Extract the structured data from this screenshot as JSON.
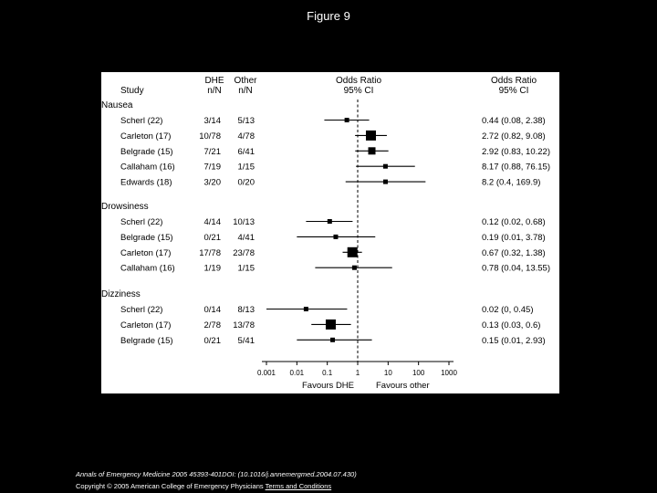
{
  "slide": {
    "title": "Figure 9"
  },
  "chart_data": {
    "type": "forest",
    "headers": {
      "study": "Study",
      "dhe_line1": "DHE",
      "dhe_line2": "n/N",
      "other_line1": "Other",
      "other_line2": "n/N",
      "plot_line1": "Odds Ratio",
      "plot_line2": "95% CI",
      "ci_line1": "Odds Ratio",
      "ci_line2": "95% CI"
    },
    "x_axis": {
      "scale": "log",
      "range": [
        0.001,
        1000
      ],
      "ticks": [
        0.001,
        0.01,
        0.1,
        1,
        10,
        100,
        1000
      ],
      "tick_labels": [
        "0.001",
        "0.01",
        "0.1",
        "1",
        "10",
        "100",
        "1000"
      ],
      "reference_line": 1,
      "label_left": "Favours DHE",
      "label_right": "Favours other"
    },
    "groups": [
      {
        "name": "Nausea",
        "studies": [
          {
            "study": "Scherl (22)",
            "dhe": "3/14",
            "other": "5/13",
            "or": 0.44,
            "low": 0.08,
            "high": 2.38,
            "ci_text": "0.44 (0.08, 2.38)",
            "weight": 1
          },
          {
            "study": "Carleton (17)",
            "dhe": "10/78",
            "other": "4/78",
            "or": 2.72,
            "low": 0.82,
            "high": 9.08,
            "ci_text": "2.72 (0.82, 9.08)",
            "weight": 3
          },
          {
            "study": "Belgrade (15)",
            "dhe": "7/21",
            "other": "6/41",
            "or": 2.92,
            "low": 0.83,
            "high": 10.22,
            "ci_text": "2.92 (0.83, 10.22)",
            "weight": 2
          },
          {
            "study": "Callaham (16)",
            "dhe": "7/19",
            "other": "1/15",
            "or": 8.17,
            "low": 0.88,
            "high": 76.15,
            "ci_text": "8.17 (0.88, 76.15)",
            "weight": 1
          },
          {
            "study": "Edwards (18)",
            "dhe": "3/20",
            "other": "0/20",
            "or": 8.2,
            "low": 0.4,
            "high": 169.9,
            "ci_text": "8.2 (0.4, 169.9)",
            "weight": 1
          }
        ]
      },
      {
        "name": "Drowsiness",
        "studies": [
          {
            "study": "Scherl (22)",
            "dhe": "4/14",
            "other": "10/13",
            "or": 0.12,
            "low": 0.02,
            "high": 0.68,
            "ci_text": "0.12 (0.02, 0.68)",
            "weight": 1
          },
          {
            "study": "Belgrade (15)",
            "dhe": "0/21",
            "other": "4/41",
            "or": 0.19,
            "low": 0.01,
            "high": 3.78,
            "ci_text": "0.19 (0.01, 3.78)",
            "weight": 1
          },
          {
            "study": "Carleton (17)",
            "dhe": "17/78",
            "other": "23/78",
            "or": 0.67,
            "low": 0.32,
            "high": 1.38,
            "ci_text": "0.67 (0.32, 1.38)",
            "weight": 3
          },
          {
            "study": "Callaham (16)",
            "dhe": "1/19",
            "other": "1/15",
            "or": 0.78,
            "low": 0.04,
            "high": 13.55,
            "ci_text": "0.78 (0.04, 13.55)",
            "weight": 1
          }
        ]
      },
      {
        "name": "Dizziness",
        "studies": [
          {
            "study": "Scherl (22)",
            "dhe": "0/14",
            "other": "8/13",
            "or": 0.02,
            "low": 0.0,
            "high": 0.45,
            "ci_text": "0.02 (0, 0.45)",
            "weight": 1
          },
          {
            "study": "Carleton (17)",
            "dhe": "2/78",
            "other": "13/78",
            "or": 0.13,
            "low": 0.03,
            "high": 0.6,
            "ci_text": "0.13 (0.03, 0.6)",
            "weight": 3
          },
          {
            "study": "Belgrade (15)",
            "dhe": "0/21",
            "other": "5/41",
            "or": 0.15,
            "low": 0.01,
            "high": 2.93,
            "ci_text": "0.15 (0.01, 2.93)",
            "weight": 1
          }
        ]
      }
    ]
  },
  "footer": {
    "citation": "Annals of Emergency Medicine 2005 45393-401DOI: (10.1016/j.annemergmed.2004.07.430)",
    "copyright": "Copyright © 2005 American College of Emergency Physicians",
    "terms_link": "Terms and Conditions"
  }
}
